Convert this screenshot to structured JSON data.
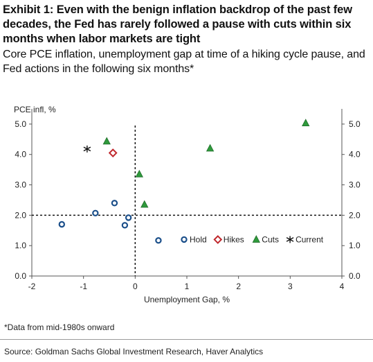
{
  "title": "Exhibit 1: Even with the benign inflation backdrop of the past few decades, the Fed has rarely followed a pause with cuts within six months when labor markets are tight",
  "subtitle": "Core PCE inflation, unemployment gap at time of a hiking cycle pause, and Fed actions in the following six months*",
  "footnote": "*Data from mid-1980s onward",
  "source": "Source: Goldman Sachs Global Investment Research, Haver Analytics",
  "colors": {
    "hold": "#1b4f8a",
    "hikes": "#c0282d",
    "cuts": "#2f9a3c",
    "current": "#111111"
  },
  "chart_data": {
    "type": "scatter",
    "ylabel": "PCE infl, %",
    "xlabel": "Unemployment Gap, %",
    "xlim": [
      -2,
      4
    ],
    "ylim": [
      0,
      5.5
    ],
    "xticks": [
      -2,
      -1,
      0,
      1,
      2,
      3,
      4
    ],
    "xtick_labels": [
      "-2",
      "-1",
      "0",
      "1",
      "2",
      "3",
      "4"
    ],
    "yticks": [
      0,
      1,
      2,
      3,
      4,
      5
    ],
    "ytick_labels": [
      "0.0",
      "1.0",
      "2.0",
      "3.0",
      "4.0",
      "5.0"
    ],
    "reference_lines": {
      "x": 0,
      "y": 2.0
    },
    "legend_position": "inside-lower-right",
    "series": [
      {
        "name": "Hold",
        "marker": "circle",
        "points": [
          [
            -1.42,
            1.7
          ],
          [
            -0.77,
            2.07
          ],
          [
            -0.4,
            2.4
          ],
          [
            -0.2,
            1.67
          ],
          [
            -0.13,
            1.92
          ],
          [
            0.45,
            1.17
          ]
        ]
      },
      {
        "name": "Hikes",
        "marker": "diamond",
        "points": [
          [
            -0.43,
            4.05
          ]
        ]
      },
      {
        "name": "Cuts",
        "marker": "triangle",
        "points": [
          [
            -0.55,
            4.43
          ],
          [
            0.08,
            3.35
          ],
          [
            0.18,
            2.35
          ],
          [
            1.45,
            4.2
          ],
          [
            3.3,
            5.03
          ]
        ]
      },
      {
        "name": "Current",
        "marker": "star",
        "points": [
          [
            -0.93,
            4.18
          ]
        ]
      }
    ]
  }
}
